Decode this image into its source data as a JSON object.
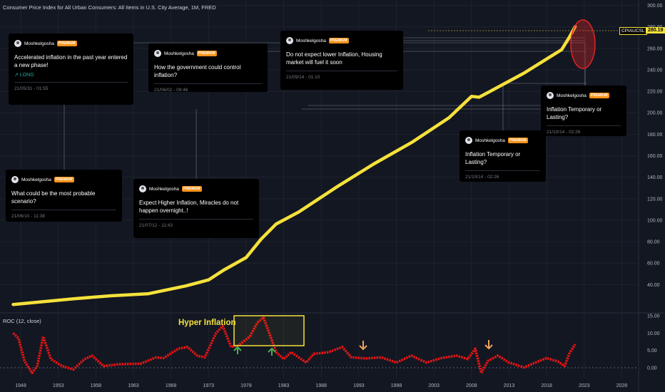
{
  "title": "Consumer Price Index for All Urban Consumers: All Items in U.S. City Average, 1M, FRED",
  "symbol": "CPIAUCSL",
  "last_price": "280.19",
  "indicator_title": "ROC (12, close)",
  "hyper_label": "Hyper Inflation",
  "colors": {
    "background": "#131722",
    "cpi_line": "#f5e13b",
    "roc_line": "#e81414",
    "box": "#f5e13b",
    "circle": "#e02424",
    "up_arrow": "#4caf50",
    "down_arrow": "#f0a35e"
  },
  "ideas": [
    {
      "author": "Moshkelgosha",
      "badge": "PREMIUM",
      "text": "Accelerated inflation in the past year entered a new phase!",
      "tag": "↗ LONG",
      "date": "21/05/31 - 01:55"
    },
    {
      "author": "Moshkelgosha",
      "badge": "PREMIUM",
      "text": "How the government could control inflation?",
      "date": "21/06/02 - 09:46"
    },
    {
      "author": "Moshkelgosha",
      "badge": "PREMIUM",
      "text": "Do not expect lower Inflation, Housing market will fuel it soon",
      "date": "21/09/14 - 01:10"
    },
    {
      "author": "Moshkelgosha",
      "badge": "PREMIUM",
      "text": "Inflation Temporary or Lasting?",
      "date": "21/10/14 - 02:26"
    },
    {
      "author": "Moshkelgosha",
      "badge": "PREMIUM",
      "text": "What could be the most probable scenario?",
      "date": "21/06/10 - 11:38"
    },
    {
      "author": "Moshkelgosha",
      "badge": "PREMIUM",
      "text": "Expect Higher Inflation, Miracles do not happen overnight..!",
      "date": "21/07/12 - 11:43"
    },
    {
      "author": "Moshkelgosha",
      "badge": "PREMIUM",
      "text": "Inflation Temporary or Lasting?",
      "date": "21/10/14 - 02:26"
    }
  ],
  "chart_data": [
    {
      "type": "line",
      "series": [
        {
          "name": "CPIAUCSL",
          "x": [
            1947,
            1950,
            1955,
            1960,
            1965,
            1970,
            1973,
            1975,
            1978,
            1980,
            1982,
            1985,
            1990,
            1995,
            2000,
            2005,
            2008,
            2009,
            2010,
            2015,
            2020,
            2021,
            2021.8
          ],
          "values": [
            21.5,
            23.5,
            26.8,
            29.6,
            31.5,
            38.8,
            44.4,
            53.5,
            65.2,
            82.4,
            96.5,
            107.6,
            130.7,
            152.4,
            172.2,
            195.3,
            215.3,
            214.5,
            218.1,
            237.0,
            258.8,
            270.0,
            280.19
          ]
        }
      ],
      "y_ticks": [
        40,
        60,
        80,
        100,
        120,
        140,
        160,
        180,
        200,
        220,
        240,
        260,
        280,
        300
      ],
      "ylim": [
        15,
        305
      ],
      "xlim": [
        1946,
        2031
      ],
      "grid": true
    },
    {
      "type": "line",
      "series": [
        {
          "name": "ROC (12, close)",
          "x": [
            1947,
            1947.7,
            1948.5,
            1949.5,
            1950.2,
            1951,
            1952,
            1953.5,
            1955,
            1956.5,
            1957.5,
            1959,
            1961,
            1964,
            1966,
            1967,
            1969,
            1970.2,
            1971.5,
            1972.5,
            1974,
            1974.9,
            1976,
            1977,
            1978.5,
            1979.5,
            1980.3,
            1981,
            1982,
            1983,
            1984,
            1986,
            1987,
            1989,
            1990.8,
            1992,
            1994,
            1996,
            1998,
            2000,
            2002,
            2004,
            2006,
            2007.5,
            2008.5,
            2009.3,
            2010.2,
            2011.5,
            2013,
            2015,
            2016.5,
            2018,
            2019.5,
            2020.4,
            2021,
            2021.8
          ],
          "values": [
            10.0,
            8.5,
            2.0,
            -1.5,
            0.5,
            9.0,
            2.5,
            0.5,
            -0.5,
            2.5,
            3.5,
            0.5,
            1.0,
            1.2,
            3.0,
            2.8,
            5.5,
            6.0,
            3.5,
            3.0,
            10.0,
            12.0,
            6.0,
            6.5,
            9.0,
            13.0,
            14.5,
            10.5,
            4.5,
            2.5,
            4.5,
            1.5,
            4.0,
            4.5,
            6.0,
            3.0,
            2.7,
            3.0,
            1.5,
            3.5,
            1.5,
            2.8,
            3.5,
            2.5,
            5.5,
            -1.5,
            2.0,
            3.5,
            1.5,
            0.1,
            1.5,
            2.8,
            1.8,
            0.5,
            4.0,
            6.8
          ],
          "color": "#e81414"
        }
      ],
      "y_ticks": [
        0,
        5,
        10,
        15
      ],
      "ylim": [
        -3,
        16
      ],
      "xlim": [
        1946,
        2031
      ],
      "x_ticks": [
        "1948",
        "1953",
        "1958",
        "1963",
        "1968",
        "1973",
        "1978",
        "1983",
        "1988",
        "1993",
        "1998",
        "2003",
        "2008",
        "2013",
        "2018",
        "2023",
        "2028"
      ]
    }
  ]
}
